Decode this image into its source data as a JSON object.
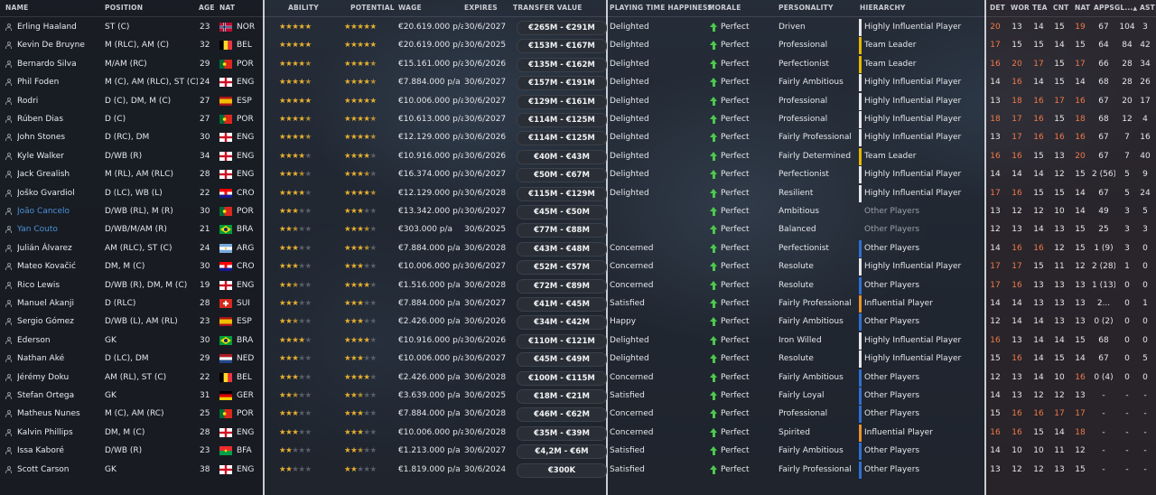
{
  "headers": {
    "name": "NAME",
    "position": "POSITION",
    "age": "AGE",
    "nat": "NAT",
    "ability": "ABILITY",
    "potential": "POTENTIAL",
    "wage": "WAGE",
    "expires": "EXPIRES",
    "transfer_value": "TRANSFER VALUE",
    "playing_time_happiness": "PLAYING TIME HAPPINESS",
    "morale": "MORALE",
    "personality": "PERSONALITY",
    "hierarchy": "HIERARCHY",
    "det": "DET",
    "wor": "WOR",
    "tea": "TEA",
    "cnt": "CNT",
    "nat2": "NAT",
    "apps": "APPS",
    "gls": "GL...",
    "ast": "AST"
  },
  "colors": {
    "influential_white": "#e6e6e6",
    "team_leader_yellow": "#e6b800",
    "influential_orange": "#e8922a",
    "other_blue": "#2f6fd1"
  },
  "players": [
    {
      "name": "Erling Haaland",
      "position": "ST (C)",
      "age": "23",
      "nat": "NOR",
      "flag": "nor",
      "ability": 5,
      "potential": 5,
      "wage": "€20.619.000 p/a",
      "expires": "30/6/2027",
      "value": "€265M - €291M",
      "happiness": "Delighted",
      "morale": "Perfect",
      "personality": "Driven",
      "hierarchy": "Highly Influential Player",
      "hcolor": "#e6e6e6",
      "det": "20",
      "wor": "13",
      "tea": "14",
      "cnt": "15",
      "natv": "19",
      "apps": "67",
      "gls": "104",
      "ast": "3",
      "link": false
    },
    {
      "name": "Kevin De Bruyne",
      "position": "M (RLC), AM (C)",
      "age": "32",
      "nat": "BEL",
      "flag": "bel",
      "ability": 5,
      "potential": 5,
      "wage": "€20.619.000 p/a",
      "expires": "30/6/2025",
      "value": "€153M - €167M",
      "happiness": "Delighted",
      "morale": "Perfect",
      "personality": "Professional",
      "hierarchy": "Team Leader",
      "hcolor": "#e6b800",
      "det": "17",
      "wor": "15",
      "tea": "15",
      "cnt": "14",
      "natv": "15",
      "apps": "64",
      "gls": "84",
      "ast": "42",
      "link": false
    },
    {
      "name": "Bernardo Silva",
      "position": "M/AM (RC)",
      "age": "29",
      "nat": "POR",
      "flag": "por",
      "ability": 4.5,
      "potential": 4.5,
      "wage": "€15.161.000 p/a",
      "expires": "30/6/2026",
      "value": "€135M - €162M",
      "happiness": "Delighted",
      "morale": "Perfect",
      "personality": "Perfectionist",
      "hierarchy": "Team Leader",
      "hcolor": "#e6b800",
      "det": "16",
      "wor": "20",
      "tea": "17",
      "cnt": "15",
      "natv": "17",
      "apps": "66",
      "gls": "28",
      "ast": "34",
      "link": false
    },
    {
      "name": "Phil Foden",
      "position": "M (C), AM (RLC), ST (C)",
      "age": "24",
      "nat": "ENG",
      "flag": "eng",
      "ability": 4.5,
      "potential": 4.5,
      "wage": "€7.884.000 p/a",
      "expires": "30/6/2027",
      "value": "€157M - €191M",
      "happiness": "Delighted",
      "morale": "Perfect",
      "personality": "Fairly Ambitious",
      "hierarchy": "Highly Influential Player",
      "hcolor": "#e6e6e6",
      "det": "14",
      "wor": "16",
      "tea": "14",
      "cnt": "15",
      "natv": "14",
      "apps": "68",
      "gls": "28",
      "ast": "26",
      "link": false
    },
    {
      "name": "Rodri",
      "position": "D (C), DM, M (C)",
      "age": "27",
      "nat": "ESP",
      "flag": "esp",
      "ability": 5,
      "potential": 5,
      "wage": "€10.006.000 p/a",
      "expires": "30/6/2027",
      "value": "€129M - €161M",
      "happiness": "Delighted",
      "morale": "Perfect",
      "personality": "Professional",
      "hierarchy": "Highly Influential Player",
      "hcolor": "#e6e6e6",
      "det": "13",
      "wor": "18",
      "tea": "16",
      "cnt": "17",
      "natv": "16",
      "apps": "67",
      "gls": "20",
      "ast": "17",
      "link": false
    },
    {
      "name": "Rúben Dias",
      "position": "D (C)",
      "age": "27",
      "nat": "POR",
      "flag": "por",
      "ability": 4.5,
      "potential": 4.5,
      "wage": "€10.613.000 p/a",
      "expires": "30/6/2027",
      "value": "€114M - €125M",
      "happiness": "Delighted",
      "morale": "Perfect",
      "personality": "Professional",
      "hierarchy": "Highly Influential Player",
      "hcolor": "#e6e6e6",
      "det": "18",
      "wor": "17",
      "tea": "16",
      "cnt": "15",
      "natv": "18",
      "apps": "68",
      "gls": "12",
      "ast": "4",
      "link": false
    },
    {
      "name": "John Stones",
      "position": "D (RC), DM",
      "age": "30",
      "nat": "ENG",
      "flag": "eng",
      "ability": 4.5,
      "potential": 4.5,
      "wage": "€12.129.000 p/a",
      "expires": "30/6/2026",
      "value": "€114M - €125M",
      "happiness": "Delighted",
      "morale": "Perfect",
      "personality": "Fairly Professional",
      "hierarchy": "Highly Influential Player",
      "hcolor": "#e6e6e6",
      "det": "13",
      "wor": "17",
      "tea": "16",
      "cnt": "16",
      "natv": "16",
      "apps": "67",
      "gls": "7",
      "ast": "16",
      "link": false
    },
    {
      "name": "Kyle Walker",
      "position": "D/WB (R)",
      "age": "34",
      "nat": "ENG",
      "flag": "eng",
      "ability": 4,
      "potential": 4,
      "wage": "€10.916.000 p/a",
      "expires": "30/6/2026",
      "value": "€40M - €43M",
      "happiness": "Delighted",
      "morale": "Perfect",
      "personality": "Fairly Determined",
      "hierarchy": "Team Leader",
      "hcolor": "#e6b800",
      "det": "16",
      "wor": "16",
      "tea": "15",
      "cnt": "13",
      "natv": "20",
      "apps": "67",
      "gls": "7",
      "ast": "40",
      "link": false
    },
    {
      "name": "Jack Grealish",
      "position": "M (RL), AM (RLC)",
      "age": "28",
      "nat": "ENG",
      "flag": "eng",
      "ability": 3.5,
      "potential": 3.5,
      "wage": "€16.374.000 p/a",
      "expires": "30/6/2027",
      "value": "€50M - €67M",
      "happiness": "Delighted",
      "morale": "Perfect",
      "personality": "Perfectionist",
      "hierarchy": "Highly Influential Player",
      "hcolor": "#e6e6e6",
      "det": "14",
      "wor": "14",
      "tea": "14",
      "cnt": "12",
      "natv": "15",
      "apps": "2 (56)",
      "gls": "5",
      "ast": "9",
      "link": false
    },
    {
      "name": "Joško Gvardiol",
      "position": "D (LC), WB (L)",
      "age": "22",
      "nat": "CRO",
      "flag": "cro",
      "ability": 4,
      "potential": 4.5,
      "wage": "€12.129.000 p/a",
      "expires": "30/6/2028",
      "value": "€115M - €129M",
      "happiness": "Delighted",
      "morale": "Perfect",
      "personality": "Resilient",
      "hierarchy": "Highly Influential Player",
      "hcolor": "#e6e6e6",
      "det": "17",
      "wor": "16",
      "tea": "15",
      "cnt": "15",
      "natv": "14",
      "apps": "67",
      "gls": "5",
      "ast": "24",
      "link": false
    },
    {
      "name": "João Cancelo",
      "position": "D/WB (RL), M (R)",
      "age": "30",
      "nat": "POR",
      "flag": "por",
      "ability": 3,
      "potential": 3,
      "wage": "€13.342.000 p/a",
      "expires": "30/6/2027",
      "value": "€45M - €50M",
      "happiness": "",
      "morale": "Perfect",
      "personality": "Ambitious",
      "hierarchy": "Other Players",
      "hcolor": "",
      "det": "13",
      "wor": "12",
      "tea": "12",
      "cnt": "10",
      "natv": "14",
      "apps": "49",
      "gls": "3",
      "ast": "5",
      "link": true
    },
    {
      "name": "Yan Couto",
      "position": "D/WB/M/AM (R)",
      "age": "21",
      "nat": "BRA",
      "flag": "bra",
      "ability": 2.5,
      "potential": 3.5,
      "wage": "€303.000 p/a",
      "expires": "30/6/2025",
      "value": "€77M - €88M",
      "happiness": "",
      "morale": "Perfect",
      "personality": "Balanced",
      "hierarchy": "Other Players",
      "hcolor": "",
      "det": "12",
      "wor": "13",
      "tea": "14",
      "cnt": "13",
      "natv": "15",
      "apps": "25",
      "gls": "3",
      "ast": "3",
      "link": true
    },
    {
      "name": "Julián Álvarez",
      "position": "AM (RLC), ST (C)",
      "age": "24",
      "nat": "ARG",
      "flag": "arg",
      "ability": 3,
      "potential": 3.5,
      "wage": "€7.884.000 p/a",
      "expires": "30/6/2028",
      "value": "€43M - €48M",
      "happiness": "Concerned",
      "morale": "Perfect",
      "personality": "Perfectionist",
      "hierarchy": "Other Players",
      "hcolor": "#2f6fd1",
      "det": "14",
      "wor": "16",
      "tea": "16",
      "cnt": "12",
      "natv": "15",
      "apps": "1 (9)",
      "gls": "3",
      "ast": "0",
      "link": false
    },
    {
      "name": "Mateo Kovačić",
      "position": "DM, M (C)",
      "age": "30",
      "nat": "CRO",
      "flag": "cro",
      "ability": 3,
      "potential": 3,
      "wage": "€10.006.000 p/a",
      "expires": "30/6/2027",
      "value": "€52M - €57M",
      "happiness": "Concerned",
      "morale": "Perfect",
      "personality": "Resolute",
      "hierarchy": "Highly Influential Player",
      "hcolor": "#e6e6e6",
      "det": "17",
      "wor": "17",
      "tea": "15",
      "cnt": "11",
      "natv": "12",
      "apps": "2 (28)",
      "gls": "1",
      "ast": "0",
      "link": false
    },
    {
      "name": "Rico Lewis",
      "position": "D/WB (R), DM, M (C)",
      "age": "19",
      "nat": "ENG",
      "flag": "eng",
      "ability": 2.5,
      "potential": 4,
      "wage": "€1.516.000 p/a",
      "expires": "30/6/2028",
      "value": "€72M - €89M",
      "happiness": "Concerned",
      "morale": "Perfect",
      "personality": "Resolute",
      "hierarchy": "Other Players",
      "hcolor": "#2f6fd1",
      "det": "17",
      "wor": "16",
      "tea": "13",
      "cnt": "13",
      "natv": "13",
      "apps": "1 (13)",
      "gls": "0",
      "ast": "0",
      "link": false
    },
    {
      "name": "Manuel Akanji",
      "position": "D (RLC)",
      "age": "28",
      "nat": "SUI",
      "flag": "sui",
      "ability": 3,
      "potential": 3,
      "wage": "€7.884.000 p/a",
      "expires": "30/6/2027",
      "value": "€41M - €45M",
      "happiness": "Satisfied",
      "morale": "Perfect",
      "personality": "Fairly Professional",
      "hierarchy": "Influential Player",
      "hcolor": "#e8922a",
      "det": "14",
      "wor": "14",
      "tea": "13",
      "cnt": "13",
      "natv": "13",
      "apps": "2...",
      "gls": "0",
      "ast": "1",
      "link": false
    },
    {
      "name": "Sergio Gómez",
      "position": "D/WB (L), AM (RL)",
      "age": "23",
      "nat": "ESP",
      "flag": "esp",
      "ability": 2.5,
      "potential": 3,
      "wage": "€2.426.000 p/a",
      "expires": "30/6/2026",
      "value": "€34M - €42M",
      "happiness": "Happy",
      "morale": "Perfect",
      "personality": "Fairly Ambitious",
      "hierarchy": "Other Players",
      "hcolor": "#2f6fd1",
      "det": "12",
      "wor": "14",
      "tea": "14",
      "cnt": "13",
      "natv": "13",
      "apps": "0 (2)",
      "gls": "0",
      "ast": "0",
      "link": false
    },
    {
      "name": "Ederson",
      "position": "GK",
      "age": "30",
      "nat": "BRA",
      "flag": "bra",
      "ability": 4,
      "potential": 4,
      "wage": "€10.916.000 p/a",
      "expires": "30/6/2026",
      "value": "€110M - €121M",
      "happiness": "Delighted",
      "morale": "Perfect",
      "personality": "Iron Willed",
      "hierarchy": "Highly Influential Player",
      "hcolor": "#e6e6e6",
      "det": "16",
      "wor": "13",
      "tea": "14",
      "cnt": "14",
      "natv": "15",
      "apps": "68",
      "gls": "0",
      "ast": "0",
      "link": false
    },
    {
      "name": "Nathan Aké",
      "position": "D (LC), DM",
      "age": "29",
      "nat": "NED",
      "flag": "ned",
      "ability": 3,
      "potential": 3,
      "wage": "€10.006.000 p/a",
      "expires": "30/6/2027",
      "value": "€45M - €49M",
      "happiness": "Delighted",
      "morale": "Perfect",
      "personality": "Resolute",
      "hierarchy": "Highly Influential Player",
      "hcolor": "#e6e6e6",
      "det": "15",
      "wor": "16",
      "tea": "14",
      "cnt": "15",
      "natv": "14",
      "apps": "67",
      "gls": "0",
      "ast": "5",
      "link": false
    },
    {
      "name": "Jérémy Doku",
      "position": "AM (RL), ST (C)",
      "age": "22",
      "nat": "BEL",
      "flag": "bel",
      "ability": 3,
      "potential": 4,
      "wage": "€2.426.000 p/a",
      "expires": "30/6/2028",
      "value": "€100M - €115M",
      "happiness": "Concerned",
      "morale": "Perfect",
      "personality": "Fairly Ambitious",
      "hierarchy": "Other Players",
      "hcolor": "#2f6fd1",
      "det": "12",
      "wor": "13",
      "tea": "14",
      "cnt": "10",
      "natv": "16",
      "apps": "0 (4)",
      "gls": "0",
      "ast": "0",
      "link": false
    },
    {
      "name": "Stefan Ortega",
      "position": "GK",
      "age": "31",
      "nat": "GER",
      "flag": "ger",
      "ability": 2.5,
      "potential": 2.5,
      "wage": "€3.639.000 p/a",
      "expires": "30/6/2025",
      "value": "€18M - €21M",
      "happiness": "Satisfied",
      "morale": "Perfect",
      "personality": "Fairly Loyal",
      "hierarchy": "Other Players",
      "hcolor": "#2f6fd1",
      "det": "14",
      "wor": "13",
      "tea": "12",
      "cnt": "12",
      "natv": "13",
      "apps": "-",
      "gls": "-",
      "ast": "-",
      "link": false
    },
    {
      "name": "Matheus Nunes",
      "position": "M (C), AM (RC)",
      "age": "25",
      "nat": "POR",
      "flag": "por",
      "ability": 3,
      "potential": 3,
      "wage": "€7.884.000 p/a",
      "expires": "30/6/2028",
      "value": "€46M - €62M",
      "happiness": "Concerned",
      "morale": "Perfect",
      "personality": "Professional",
      "hierarchy": "Other Players",
      "hcolor": "#2f6fd1",
      "det": "15",
      "wor": "16",
      "tea": "16",
      "cnt": "17",
      "natv": "17",
      "apps": "-",
      "gls": "-",
      "ast": "-",
      "link": false
    },
    {
      "name": "Kalvin Phillips",
      "position": "DM, M (C)",
      "age": "28",
      "nat": "ENG",
      "flag": "eng",
      "ability": 3,
      "potential": 3,
      "wage": "€10.006.000 p/a",
      "expires": "30/6/2028",
      "value": "€35M - €39M",
      "happiness": "Concerned",
      "morale": "Perfect",
      "personality": "Spirited",
      "hierarchy": "Influential Player",
      "hcolor": "#e8922a",
      "det": "16",
      "wor": "16",
      "tea": "15",
      "cnt": "14",
      "natv": "18",
      "apps": "-",
      "gls": "-",
      "ast": "-",
      "link": false
    },
    {
      "name": "Issa Kaboré",
      "position": "D/WB (R)",
      "age": "23",
      "nat": "BFA",
      "flag": "bfa",
      "ability": 2,
      "potential": 2.5,
      "wage": "€1.213.000 p/a",
      "expires": "30/6/2027",
      "value": "€4,2M - €6M",
      "happiness": "Satisfied",
      "morale": "Perfect",
      "personality": "Fairly Ambitious",
      "hierarchy": "Other Players",
      "hcolor": "#2f6fd1",
      "det": "14",
      "wor": "10",
      "tea": "10",
      "cnt": "11",
      "natv": "12",
      "apps": "-",
      "gls": "-",
      "ast": "-",
      "link": false
    },
    {
      "name": "Scott Carson",
      "position": "GK",
      "age": "38",
      "nat": "ENG",
      "flag": "eng",
      "ability": 2,
      "potential": 2,
      "wage": "€1.819.000 p/a",
      "expires": "30/6/2024",
      "value": "€300K",
      "happiness": "Satisfied",
      "morale": "Perfect",
      "personality": "Fairly Professional",
      "hierarchy": "Other Players",
      "hcolor": "#2f6fd1",
      "det": "13",
      "wor": "12",
      "tea": "12",
      "cnt": "13",
      "natv": "15",
      "apps": "-",
      "gls": "-",
      "ast": "-",
      "link": false
    }
  ]
}
